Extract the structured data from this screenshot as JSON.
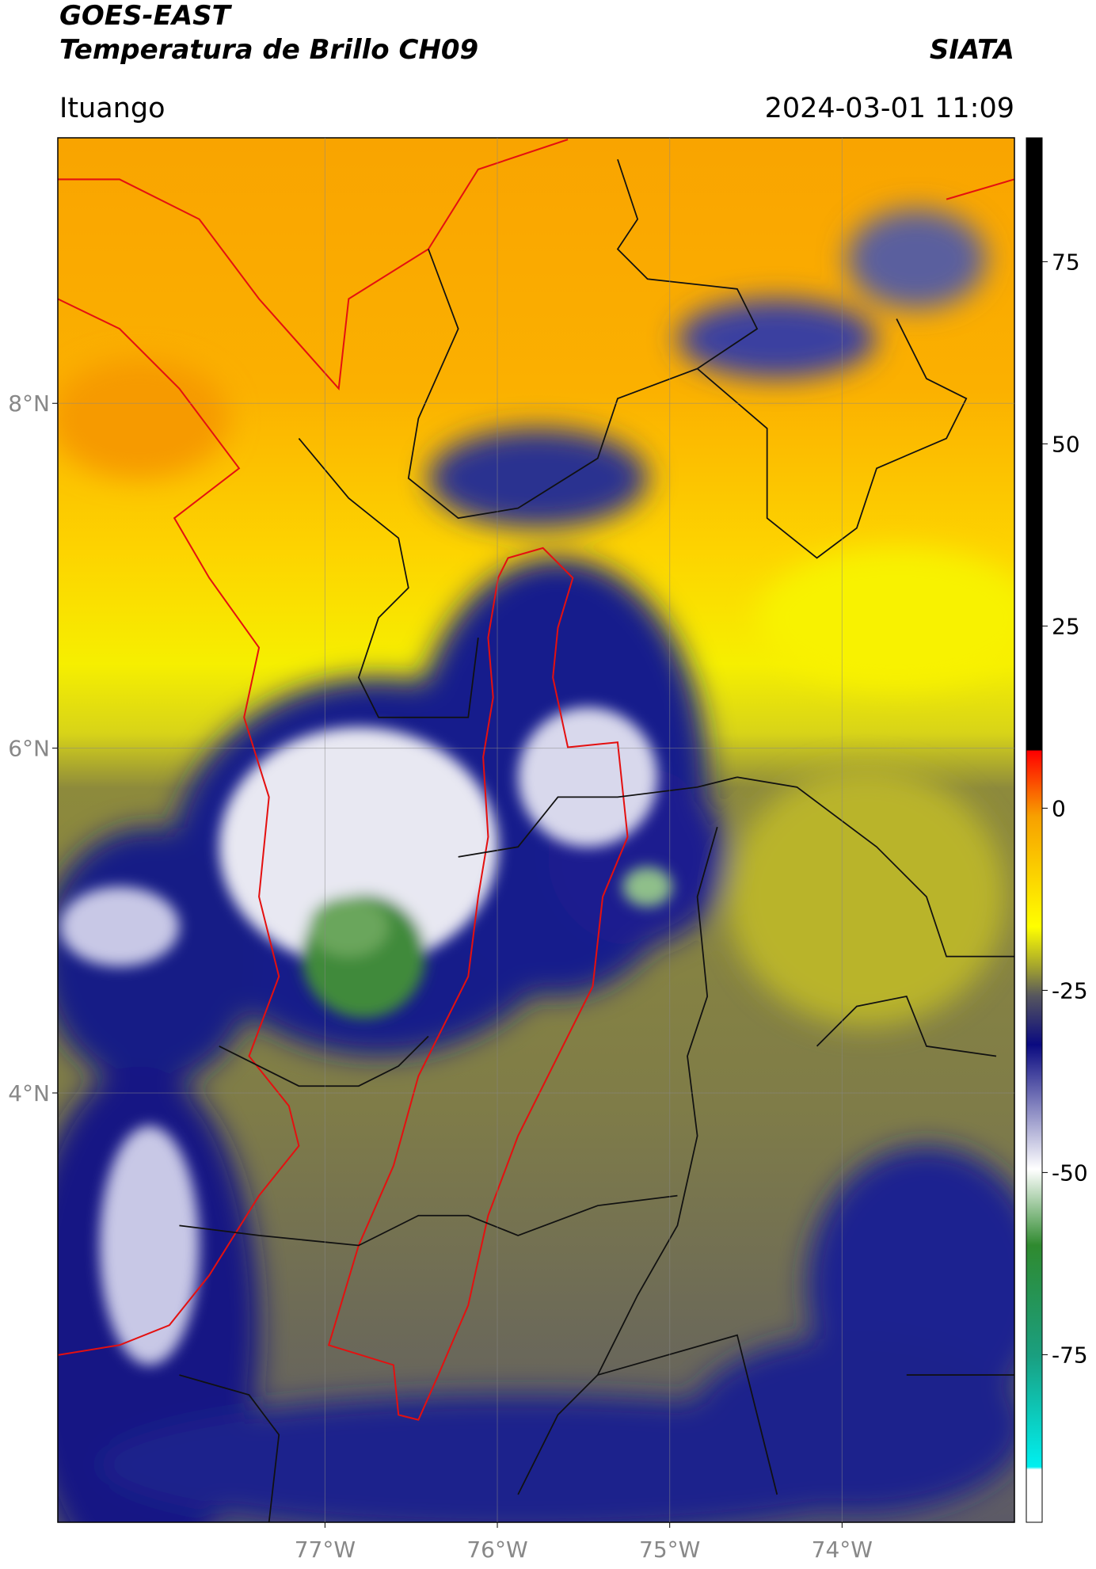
{
  "header": {
    "title_line1": "GOES-EAST",
    "title_line2": "Temperatura de Brillo CH09",
    "source": "SIATA",
    "location": "Ituango",
    "datetime": "2024-03-01 11:09"
  },
  "map": {
    "xlim": [
      -78.55,
      -73.0
    ],
    "ylim": [
      1.51,
      9.54
    ],
    "xticks": [
      {
        "value": -77,
        "label": "77°W"
      },
      {
        "value": -76,
        "label": "76°W"
      },
      {
        "value": -75,
        "label": "75°W"
      },
      {
        "value": -74,
        "label": "74°W"
      }
    ],
    "yticks": [
      {
        "value": 8,
        "label": "8°N"
      },
      {
        "value": 6,
        "label": "6°N"
      },
      {
        "value": 4,
        "label": "4°N"
      }
    ],
    "grid": true
  },
  "colorbar": {
    "lim": [
      -98,
      92
    ],
    "ticks": [
      75,
      50,
      25,
      0,
      -25,
      -50,
      -75
    ]
  }
}
